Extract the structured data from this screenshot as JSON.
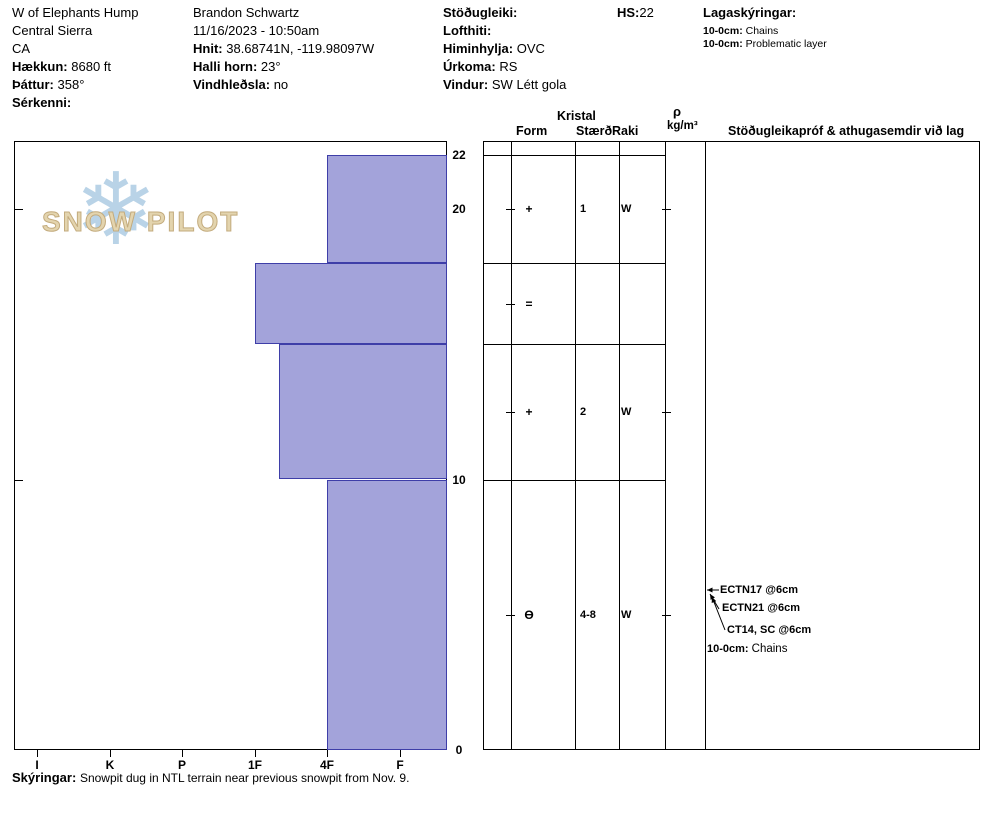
{
  "header": {
    "site": {
      "name": "W of Elephants Hump",
      "region": "Central Sierra",
      "state": "CA",
      "elevation_label": "Hækkun:",
      "elevation_value": "8680 ft",
      "aspect_label": "Þáttur:",
      "aspect_value": "358°",
      "features_label": "Sérkenni:"
    },
    "observer": {
      "name": "Brandon Schwartz",
      "datetime": "11/16/2023 - 10:50am",
      "coords_label": "Hnit:",
      "coords_value": "38.68741N, -119.98097W",
      "slope_angle_label": "Halli horn:",
      "slope_angle_value": "23°",
      "wind_loading_label": "Vindhleðsla:",
      "wind_loading_value": "no"
    },
    "conditions": {
      "stability_label": "Stöðugleiki:",
      "air_temp_label": "Lofthiti:",
      "sky_label": "Himinhylja:",
      "sky_value": "OVC",
      "precip_label": "Úrkoma:",
      "precip_value": "RS",
      "wind_label": "Vindur:",
      "wind_value": "SW Létt gola"
    },
    "hs_label": "HS:",
    "hs_value": "22",
    "layer_notes": {
      "title": "Lagaskýringar:",
      "items": [
        {
          "label": "10-0cm:",
          "text": "Chains"
        },
        {
          "label": "10-0cm:",
          "text": "Problematic layer"
        }
      ]
    }
  },
  "table_headers": {
    "crystal": "Kristal",
    "form": "Form",
    "size": "Stærð",
    "moisture": "Raki",
    "density_symbol": "ρ",
    "density_units": "kg/m³",
    "comments": "Stöðugleikapróf & athugasemdir við lag"
  },
  "chart_data": {
    "type": "snow-profile-bar",
    "depth_axis": {
      "unit": "cm",
      "min": 0,
      "max": 22,
      "tick_labels": [
        0,
        10,
        20,
        22
      ]
    },
    "hardness_axis": {
      "categories": [
        "I",
        "K",
        "P",
        "1F",
        "4F",
        "F"
      ]
    },
    "total_snow_height": 22,
    "layers": [
      {
        "top_cm": 22,
        "bottom_cm": 18,
        "hardness": "4F",
        "grain_form": "+",
        "grain_size_mm": "1",
        "moisture": "W"
      },
      {
        "top_cm": 18,
        "bottom_cm": 15,
        "hardness": "1F",
        "grain_form": "=",
        "grain_size_mm": "",
        "moisture": ""
      },
      {
        "top_cm": 15,
        "bottom_cm": 10,
        "hardness": "1F+",
        "grain_form": "+",
        "grain_size_mm": "2",
        "moisture": "W"
      },
      {
        "top_cm": 10,
        "bottom_cm": 0,
        "hardness": "4F",
        "grain_form": "Ɵ",
        "grain_size_mm": "4-8",
        "moisture": "W"
      }
    ],
    "stability_tests": [
      {
        "result": "ECTN17",
        "at": "@6cm"
      },
      {
        "result": "ECTN21",
        "at": "@6cm"
      },
      {
        "result": "CT14, SC",
        "at": "@6cm"
      }
    ],
    "problem_note": {
      "label": "10-0cm:",
      "text": "Chains"
    },
    "colors": {
      "bar_fill": "#a3a3da",
      "bar_border": "#3e3ea8"
    }
  },
  "icons": {
    "snowflake": "❄"
  },
  "logo_text": "SNOW PILOT",
  "footer": {
    "label": "Skýringar:",
    "text": "Snowpit dug in NTL terrain near previous snowpit from Nov. 9."
  }
}
